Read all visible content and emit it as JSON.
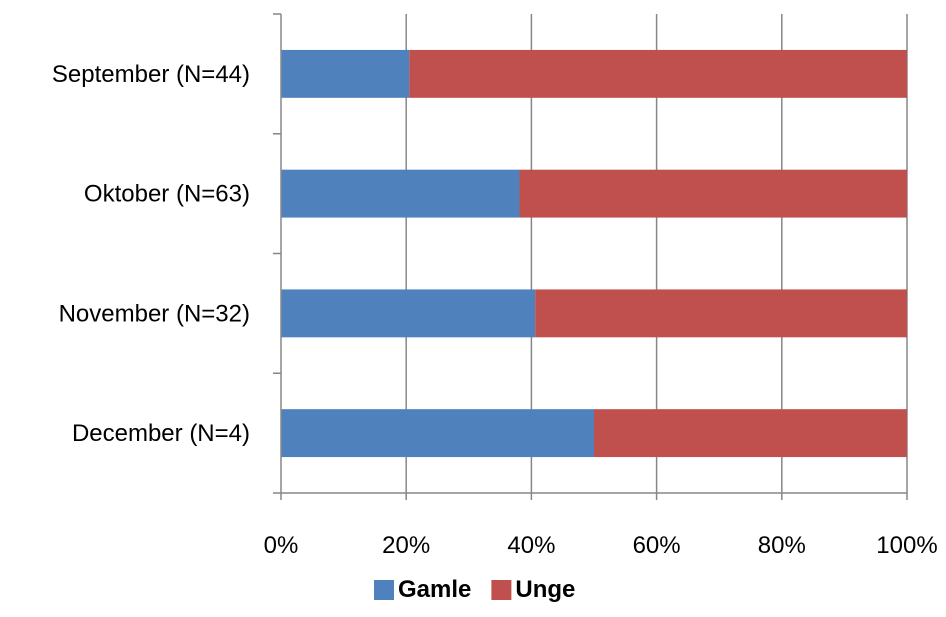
{
  "chart_data": {
    "type": "bar",
    "orientation": "horizontal",
    "stacked": "percent",
    "categories": [
      "September (N=44)",
      "Oktober (N=63)",
      "November (N=32)",
      "December (N=4)"
    ],
    "series": [
      {
        "name": "Gamle",
        "color": "#4f81bd",
        "values": [
          20.5,
          38.1,
          40.6,
          50.0
        ]
      },
      {
        "name": "Unge",
        "color": "#c0504d",
        "values": [
          79.5,
          61.9,
          59.4,
          50.0
        ]
      }
    ],
    "xlim": [
      0,
      100
    ],
    "x_ticks": [
      "0%",
      "20%",
      "40%",
      "60%",
      "80%",
      "100%"
    ],
    "grid": true,
    "legend_position": "bottom"
  }
}
